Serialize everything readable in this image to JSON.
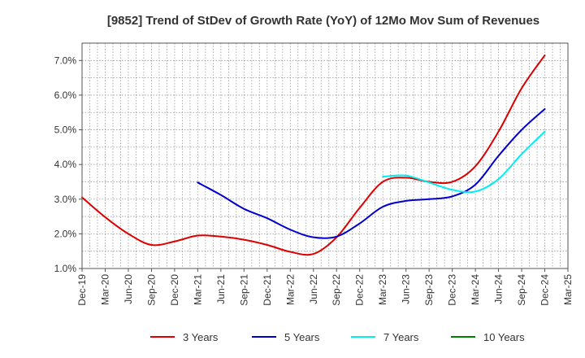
{
  "chart_data": {
    "type": "line",
    "title": "[9852]  Trend of StDev of Growth Rate (YoY) of 12Mo Mov Sum of Revenues",
    "xlabel": "",
    "ylabel": "",
    "ylim": [
      1.0,
      7.5
    ],
    "y_ticks": [
      1.0,
      2.0,
      3.0,
      4.0,
      5.0,
      6.0,
      7.0
    ],
    "y_tick_labels": [
      "1.0%",
      "2.0%",
      "3.0%",
      "4.0%",
      "5.0%",
      "6.0%",
      "7.0%"
    ],
    "x_tick_labels": [
      "Dec-19",
      "Mar-20",
      "Jun-20",
      "Sep-20",
      "Dec-20",
      "Mar-21",
      "Jun-21",
      "Sep-21",
      "Dec-21",
      "Mar-22",
      "Jun-22",
      "Sep-22",
      "Dec-22",
      "Mar-23",
      "Jun-23",
      "Sep-23",
      "Dec-23",
      "Mar-24",
      "Jun-24",
      "Sep-24",
      "Dec-24",
      "Mar-25"
    ],
    "grid": true,
    "legend_position": "bottom",
    "series": [
      {
        "name": "3 Years",
        "color": "#dd0000",
        "start_quarter": 0,
        "values": [
          3.05,
          2.48,
          2.0,
          1.68,
          1.78,
          1.95,
          1.92,
          1.83,
          1.68,
          1.48,
          1.42,
          1.9,
          2.75,
          3.5,
          3.62,
          3.5,
          3.5,
          3.95,
          4.95,
          6.2,
          7.15
        ]
      },
      {
        "name": "5 Years",
        "color": "#0000cc",
        "start_quarter": 5,
        "values": [
          3.48,
          3.12,
          2.72,
          2.45,
          2.12,
          1.9,
          1.92,
          2.3,
          2.78,
          2.95,
          3.0,
          3.08,
          3.42,
          4.25,
          5.0,
          5.6
        ]
      },
      {
        "name": "7 Years",
        "color": "#00eeee",
        "start_quarter": 13,
        "values": [
          3.65,
          3.68,
          3.48,
          3.27,
          3.22,
          3.58,
          4.3,
          4.95
        ]
      },
      {
        "name": "10 Years",
        "color": "#008000",
        "start_quarter": 0,
        "values": []
      }
    ]
  }
}
